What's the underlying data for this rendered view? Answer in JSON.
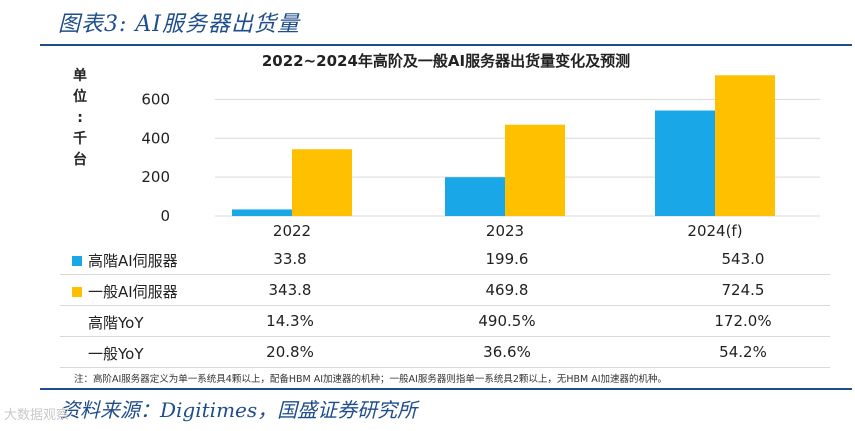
{
  "figure_title": "图表3:  AI服务器出货量",
  "source": "资料来源：Digitimes，国盛证券研究所",
  "watermark": "大数据观察",
  "chart_data": {
    "type": "bar",
    "title": "2022~2024年高阶及一般AI服务器出货量变化及预测",
    "ylabel": "单位：千台",
    "ylim": [
      0,
      700
    ],
    "yticks": [
      0,
      200,
      400,
      600
    ],
    "categories": [
      "2022",
      "2023",
      "2024(f)"
    ],
    "series": [
      {
        "name": "高階AI伺服器",
        "color": "#1aa7e8",
        "values": [
          33.8,
          199.6,
          543.0
        ],
        "labels": [
          "33.8",
          "199.6",
          "543.0"
        ]
      },
      {
        "name": "一般AI伺服器",
        "color": "#ffc000",
        "values": [
          343.8,
          469.8,
          724.5
        ],
        "labels": [
          "343.8",
          "469.8",
          "724.5"
        ]
      }
    ],
    "table_rows": [
      {
        "label": "高階YoY",
        "values": [
          "14.3%",
          "490.5%",
          "172.0%"
        ]
      },
      {
        "label": "一般YoY",
        "values": [
          "20.8%",
          "36.6%",
          "54.2%"
        ]
      }
    ],
    "footnote": "注：高阶AI服务器定义为单一系统具4颗以上，配备HBM AI加速器的机种；一般AI服务器则指单一系统具2颗以上，无HBM AI加速器的机种。"
  }
}
